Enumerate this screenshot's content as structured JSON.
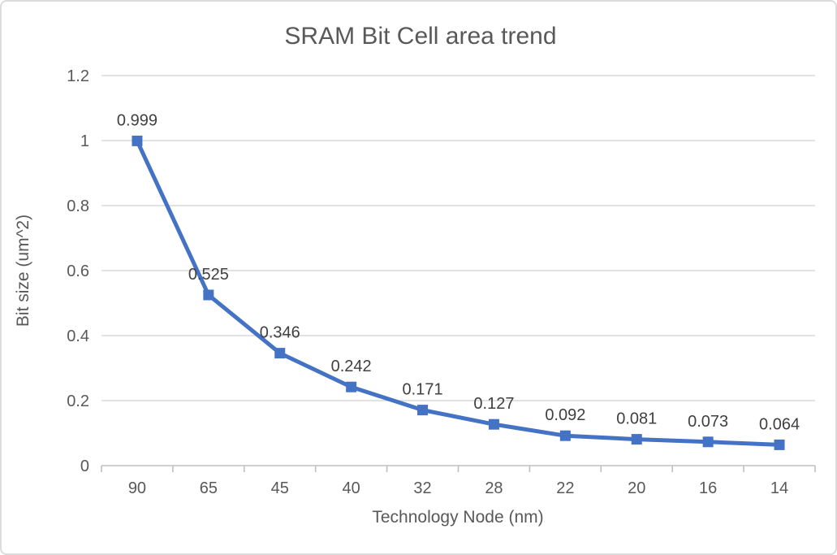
{
  "chart_data": {
    "type": "line",
    "title": "SRAM Bit Cell area trend",
    "xlabel": "Technology Node (nm)",
    "ylabel": "Bit size (um^2)",
    "categories": [
      "90",
      "65",
      "45",
      "40",
      "32",
      "28",
      "22",
      "20",
      "16",
      "14"
    ],
    "values": [
      0.999,
      0.525,
      0.346,
      0.242,
      0.171,
      0.127,
      0.092,
      0.081,
      0.073,
      0.064
    ],
    "data_labels": [
      "0.999",
      "0.525",
      "0.346",
      "0.242",
      "0.171",
      "0.127",
      "0.092",
      "0.081",
      "0.073",
      "0.064"
    ],
    "ylim": [
      0,
      1.2
    ],
    "ytick_values": [
      0,
      0.2,
      0.4,
      0.6,
      0.8,
      1,
      1.2
    ],
    "ytick_labels": [
      "0",
      "0.2",
      "0.4",
      "0.6",
      "0.8",
      "1",
      "1.2"
    ],
    "grid": true,
    "legend": "none",
    "series_color": "#4472C4",
    "gridline_color": "#D9D9D9",
    "axis_color": "#BFBFBF",
    "tick_text_color": "#595959",
    "data_label_color": "#404040",
    "marker": "square",
    "marker_size": 13,
    "line_width": 5
  }
}
